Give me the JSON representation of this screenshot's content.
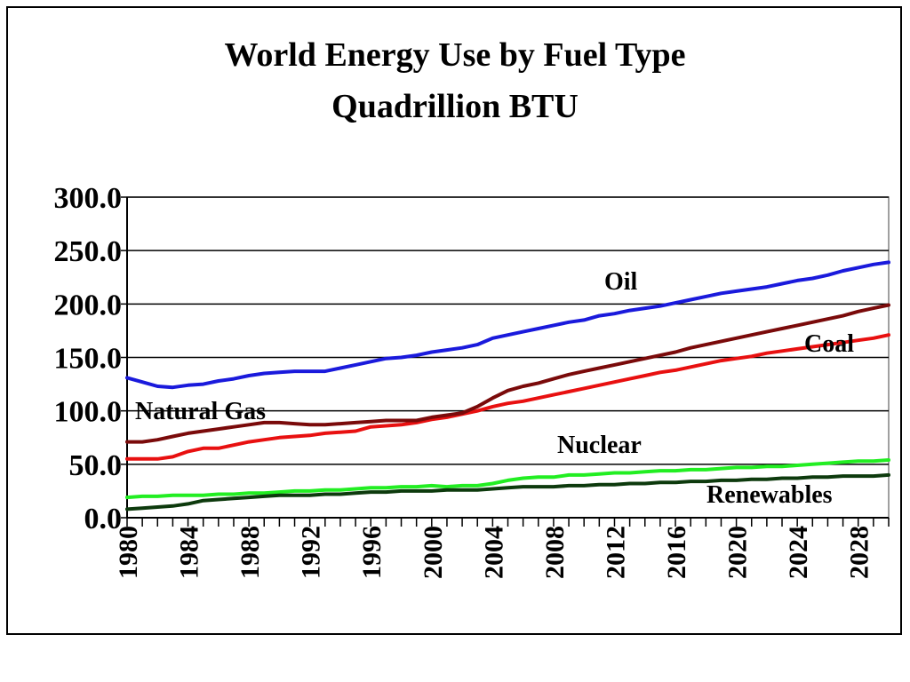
{
  "chart_data": {
    "type": "line",
    "title": "World Energy Use by Fuel Type",
    "subtitle": "Quadrillion BTU",
    "xlabel": "",
    "ylabel": "",
    "x": [
      1980,
      1981,
      1982,
      1983,
      1984,
      1985,
      1986,
      1987,
      1988,
      1989,
      1990,
      1991,
      1992,
      1993,
      1994,
      1995,
      1996,
      1997,
      1998,
      1999,
      2000,
      2001,
      2002,
      2003,
      2004,
      2005,
      2006,
      2007,
      2008,
      2009,
      2010,
      2011,
      2012,
      2013,
      2014,
      2015,
      2016,
      2017,
      2018,
      2019,
      2020,
      2021,
      2022,
      2023,
      2024,
      2025,
      2026,
      2027,
      2028,
      2029,
      2030
    ],
    "xlim": [
      1980,
      2030
    ],
    "ylim": [
      0,
      300
    ],
    "y_ticks": [
      "300.0",
      "250.0",
      "200.0",
      "150.0",
      "100.0",
      "50.0",
      "0.0"
    ],
    "x_tick_labels": [
      "1980",
      "1984",
      "1988",
      "1992",
      "1996",
      "2000",
      "2004",
      "2008",
      "2012",
      "2016",
      "2020",
      "2024",
      "2028"
    ],
    "grid": true,
    "series": [
      {
        "name": "Oil",
        "color": "#1a1adc",
        "values": [
          131,
          127,
          123,
          122,
          124,
          125,
          128,
          130,
          133,
          135,
          136,
          137,
          137,
          137,
          140,
          143,
          146,
          149,
          150,
          152,
          155,
          157,
          159,
          162,
          168,
          171,
          174,
          177,
          180,
          183,
          185,
          189,
          191,
          194,
          196,
          198,
          201,
          204,
          207,
          210,
          212,
          214,
          216,
          219,
          222,
          224,
          227,
          231,
          234,
          237,
          239
        ]
      },
      {
        "name": "Coal",
        "color": "#e81010",
        "values": [
          55,
          55,
          55,
          57,
          62,
          65,
          65,
          68,
          71,
          73,
          75,
          76,
          77,
          79,
          80,
          81,
          85,
          86,
          87,
          89,
          92,
          94,
          97,
          100,
          104,
          107,
          109,
          112,
          115,
          118,
          121,
          124,
          127,
          130,
          133,
          136,
          138,
          141,
          144,
          147,
          149,
          151,
          154,
          156,
          158,
          160,
          162,
          164,
          166,
          168,
          171
        ]
      },
      {
        "name": "Natural Gas",
        "color": "#7a0a0a",
        "values": [
          71,
          71,
          73,
          76,
          79,
          81,
          83,
          85,
          87,
          89,
          89,
          88,
          87,
          87,
          88,
          89,
          90,
          91,
          91,
          91,
          94,
          96,
          98,
          104,
          112,
          119,
          123,
          126,
          130,
          134,
          137,
          140,
          143,
          146,
          149,
          152,
          155,
          159,
          162,
          165,
          168,
          171,
          174,
          177,
          180,
          183,
          186,
          189,
          193,
          196,
          199
        ]
      },
      {
        "name": "Nuclear",
        "color": "#22ee22",
        "values": [
          19,
          20,
          20,
          21,
          21,
          21,
          22,
          22,
          23,
          23,
          24,
          25,
          25,
          26,
          26,
          27,
          28,
          28,
          29,
          29,
          30,
          29,
          30,
          30,
          32,
          35,
          37,
          38,
          38,
          40,
          40,
          41,
          42,
          42,
          43,
          44,
          44,
          45,
          45,
          46,
          47,
          47,
          48,
          48,
          49,
          50,
          51,
          52,
          53,
          53,
          54
        ]
      },
      {
        "name": "Renewables",
        "color": "#0d3a0d",
        "values": [
          8,
          9,
          10,
          11,
          13,
          16,
          17,
          18,
          19,
          20,
          21,
          21,
          21,
          22,
          22,
          23,
          24,
          24,
          25,
          25,
          25,
          26,
          26,
          26,
          27,
          28,
          29,
          29,
          29,
          30,
          30,
          31,
          31,
          32,
          32,
          33,
          33,
          34,
          34,
          35,
          35,
          36,
          36,
          37,
          37,
          38,
          38,
          39,
          39,
          39,
          40
        ]
      }
    ]
  }
}
